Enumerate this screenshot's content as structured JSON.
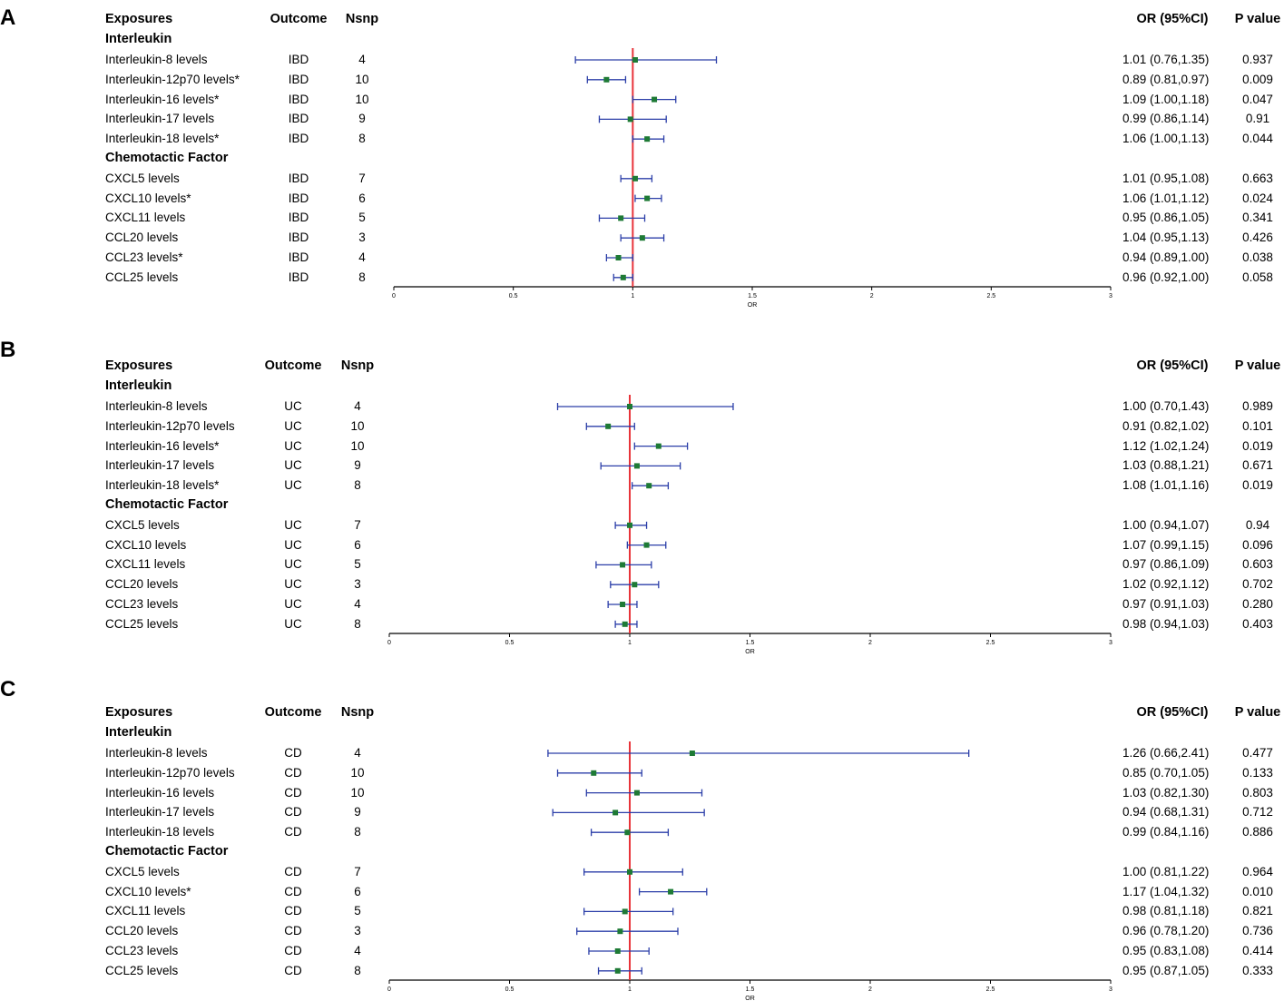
{
  "headers": {
    "exposures": "Exposures",
    "outcome": "Outcome",
    "nsnp": "Nsnp",
    "or_ci": "OR (95%CI)",
    "p_value": "P value"
  },
  "groups": {
    "interleukin": "Interleukin",
    "chemotactic": "Chemotactic Factor"
  },
  "axis": {
    "label": "OR",
    "ticks": [
      "0",
      "0.5",
      "1",
      "1.5",
      "2",
      "2.5",
      "3"
    ]
  },
  "colors": {
    "reference_line": "#e8343a",
    "ci_line": "#2b3ea8",
    "point": "#1e7a35"
  },
  "panels": [
    {
      "letter": "A",
      "rows": [
        {
          "exposure": "Interleukin-8 levels",
          "outcome": "IBD",
          "nsnp": "4",
          "or_ci": "1.01 (0.76,1.35)",
          "p": "0.937"
        },
        {
          "exposure": "Interleukin-12p70 levels*",
          "outcome": "IBD",
          "nsnp": "10",
          "or_ci": "0.89 (0.81,0.97)",
          "p": "0.009"
        },
        {
          "exposure": "Interleukin-16 levels*",
          "outcome": "IBD",
          "nsnp": "10",
          "or_ci": "1.09 (1.00,1.18)",
          "p": "0.047"
        },
        {
          "exposure": "Interleukin-17 levels",
          "outcome": "IBD",
          "nsnp": "9",
          "or_ci": "0.99 (0.86,1.14)",
          "p": "0.91"
        },
        {
          "exposure": "Interleukin-18 levels*",
          "outcome": "IBD",
          "nsnp": "8",
          "or_ci": "1.06 (1.00,1.13)",
          "p": "0.044"
        },
        {
          "exposure": "CXCL5 levels",
          "outcome": "IBD",
          "nsnp": "7",
          "or_ci": "1.01 (0.95,1.08)",
          "p": "0.663"
        },
        {
          "exposure": "CXCL10 levels*",
          "outcome": "IBD",
          "nsnp": "6",
          "or_ci": "1.06 (1.01,1.12)",
          "p": "0.024"
        },
        {
          "exposure": "CXCL11 levels",
          "outcome": "IBD",
          "nsnp": "5",
          "or_ci": "0.95 (0.86,1.05)",
          "p": "0.341"
        },
        {
          "exposure": "CCL20 levels",
          "outcome": "IBD",
          "nsnp": "3",
          "or_ci": "1.04 (0.95,1.13)",
          "p": "0.426"
        },
        {
          "exposure": "CCL23 levels*",
          "outcome": "IBD",
          "nsnp": "4",
          "or_ci": "0.94 (0.89,1.00)",
          "p": "0.038"
        },
        {
          "exposure": "CCL25 levels",
          "outcome": "IBD",
          "nsnp": "8",
          "or_ci": "0.96 (0.92,1.00)",
          "p": "0.058"
        }
      ]
    },
    {
      "letter": "B",
      "rows": [
        {
          "exposure": "Interleukin-8 levels",
          "outcome": "UC",
          "nsnp": "4",
          "or_ci": "1.00 (0.70,1.43)",
          "p": "0.989"
        },
        {
          "exposure": "Interleukin-12p70 levels",
          "outcome": "UC",
          "nsnp": "10",
          "or_ci": "0.91 (0.82,1.02)",
          "p": "0.101"
        },
        {
          "exposure": "Interleukin-16 levels*",
          "outcome": "UC",
          "nsnp": "10",
          "or_ci": "1.12 (1.02,1.24)",
          "p": "0.019"
        },
        {
          "exposure": "Interleukin-17 levels",
          "outcome": "UC",
          "nsnp": "9",
          "or_ci": "1.03 (0.88,1.21)",
          "p": "0.671"
        },
        {
          "exposure": "Interleukin-18 levels*",
          "outcome": "UC",
          "nsnp": "8",
          "or_ci": "1.08 (1.01,1.16)",
          "p": "0.019"
        },
        {
          "exposure": "CXCL5 levels",
          "outcome": "UC",
          "nsnp": "7",
          "or_ci": "1.00 (0.94,1.07)",
          "p": "0.94"
        },
        {
          "exposure": "CXCL10 levels",
          "outcome": "UC",
          "nsnp": "6",
          "or_ci": "1.07 (0.99,1.15)",
          "p": "0.096"
        },
        {
          "exposure": "CXCL11 levels",
          "outcome": "UC",
          "nsnp": "5",
          "or_ci": "0.97 (0.86,1.09)",
          "p": "0.603"
        },
        {
          "exposure": "CCL20 levels",
          "outcome": "UC",
          "nsnp": "3",
          "or_ci": "1.02 (0.92,1.12)",
          "p": "0.702"
        },
        {
          "exposure": "CCL23 levels",
          "outcome": "UC",
          "nsnp": "4",
          "or_ci": "0.97 (0.91,1.03)",
          "p": "0.280"
        },
        {
          "exposure": "CCL25 levels",
          "outcome": "UC",
          "nsnp": "8",
          "or_ci": "0.98 (0.94,1.03)",
          "p": "0.403"
        }
      ]
    },
    {
      "letter": "C",
      "rows": [
        {
          "exposure": "Interleukin-8 levels",
          "outcome": "CD",
          "nsnp": "4",
          "or_ci": "1.26 (0.66,2.41)",
          "p": "0.477"
        },
        {
          "exposure": "Interleukin-12p70 levels",
          "outcome": "CD",
          "nsnp": "10",
          "or_ci": "0.85 (0.70,1.05)",
          "p": "0.133"
        },
        {
          "exposure": "Interleukin-16 levels",
          "outcome": "CD",
          "nsnp": "10",
          "or_ci": "1.03 (0.82,1.30)",
          "p": "0.803"
        },
        {
          "exposure": "Interleukin-17 levels",
          "outcome": "CD",
          "nsnp": "9",
          "or_ci": "0.94 (0.68,1.31)",
          "p": "0.712"
        },
        {
          "exposure": "Interleukin-18 levels",
          "outcome": "CD",
          "nsnp": "8",
          "or_ci": "0.99 (0.84,1.16)",
          "p": "0.886"
        },
        {
          "exposure": "CXCL5 levels",
          "outcome": "CD",
          "nsnp": "7",
          "or_ci": "1.00 (0.81,1.22)",
          "p": "0.964"
        },
        {
          "exposure": "CXCL10 levels*",
          "outcome": "CD",
          "nsnp": "6",
          "or_ci": "1.17 (1.04,1.32)",
          "p": "0.010"
        },
        {
          "exposure": "CXCL11 levels",
          "outcome": "CD",
          "nsnp": "5",
          "or_ci": "0.98 (0.81,1.18)",
          "p": "0.821"
        },
        {
          "exposure": "CCL20 levels",
          "outcome": "CD",
          "nsnp": "3",
          "or_ci": "0.96 (0.78,1.20)",
          "p": "0.736"
        },
        {
          "exposure": "CCL23 levels",
          "outcome": "CD",
          "nsnp": "4",
          "or_ci": "0.95 (0.83,1.08)",
          "p": "0.414"
        },
        {
          "exposure": "CCL25 levels",
          "outcome": "CD",
          "nsnp": "8",
          "or_ci": "0.95 (0.87,1.05)",
          "p": "0.333"
        }
      ]
    }
  ],
  "chart_data": [
    {
      "type": "forest",
      "title": "A",
      "xlabel": "OR",
      "xlim": [
        0,
        3
      ],
      "reference": 1,
      "categories": [
        "Interleukin-8 levels",
        "Interleukin-12p70 levels*",
        "Interleukin-16 levels*",
        "Interleukin-17 levels",
        "Interleukin-18 levels*",
        "CXCL5 levels",
        "CXCL10 levels*",
        "CXCL11 levels",
        "CCL20 levels",
        "CCL23 levels*",
        "CCL25 levels"
      ],
      "or": [
        1.01,
        0.89,
        1.09,
        0.99,
        1.06,
        1.01,
        1.06,
        0.95,
        1.04,
        0.94,
        0.96
      ],
      "lower": [
        0.76,
        0.81,
        1.0,
        0.86,
        1.0,
        0.95,
        1.01,
        0.86,
        0.95,
        0.89,
        0.92
      ],
      "upper": [
        1.35,
        0.97,
        1.18,
        1.14,
        1.13,
        1.08,
        1.12,
        1.05,
        1.13,
        1.0,
        1.0
      ]
    },
    {
      "type": "forest",
      "title": "B",
      "xlabel": "OR",
      "xlim": [
        0,
        3
      ],
      "reference": 1,
      "categories": [
        "Interleukin-8 levels",
        "Interleukin-12p70 levels",
        "Interleukin-16 levels*",
        "Interleukin-17 levels",
        "Interleukin-18 levels*",
        "CXCL5 levels",
        "CXCL10 levels",
        "CXCL11 levels",
        "CCL20 levels",
        "CCL23 levels",
        "CCL25 levels"
      ],
      "or": [
        1.0,
        0.91,
        1.12,
        1.03,
        1.08,
        1.0,
        1.07,
        0.97,
        1.02,
        0.97,
        0.98
      ],
      "lower": [
        0.7,
        0.82,
        1.02,
        0.88,
        1.01,
        0.94,
        0.99,
        0.86,
        0.92,
        0.91,
        0.94
      ],
      "upper": [
        1.43,
        1.02,
        1.24,
        1.21,
        1.16,
        1.07,
        1.15,
        1.09,
        1.12,
        1.03,
        1.03
      ]
    },
    {
      "type": "forest",
      "title": "C",
      "xlabel": "OR",
      "xlim": [
        0,
        3
      ],
      "reference": 1,
      "categories": [
        "Interleukin-8 levels",
        "Interleukin-12p70 levels",
        "Interleukin-16 levels",
        "Interleukin-17 levels",
        "Interleukin-18 levels",
        "CXCL5 levels",
        "CXCL10 levels*",
        "CXCL11 levels",
        "CCL20 levels",
        "CCL23 levels",
        "CCL25 levels"
      ],
      "or": [
        1.26,
        0.85,
        1.03,
        0.94,
        0.99,
        1.0,
        1.17,
        0.98,
        0.96,
        0.95,
        0.95
      ],
      "lower": [
        0.66,
        0.7,
        0.82,
        0.68,
        0.84,
        0.81,
        1.04,
        0.81,
        0.78,
        0.83,
        0.87
      ],
      "upper": [
        2.41,
        1.05,
        1.3,
        1.31,
        1.16,
        1.22,
        1.32,
        1.18,
        1.2,
        1.08,
        1.05
      ]
    }
  ]
}
